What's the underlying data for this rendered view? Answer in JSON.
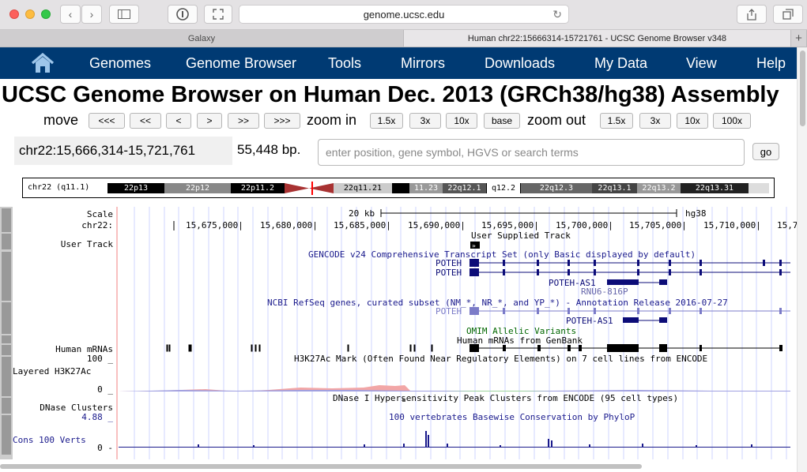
{
  "browser": {
    "url": "genome.ucsc.edu",
    "tabs": [
      "Galaxy",
      "Human chr22:15666314-15721761 - UCSC Genome Browser v348"
    ],
    "new_tab_label": "+"
  },
  "nav": {
    "items": [
      "Genomes",
      "Genome Browser",
      "Tools",
      "Mirrors",
      "Downloads",
      "My Data",
      "View",
      "Help"
    ]
  },
  "page": {
    "title": "UCSC Genome Browser on Human Dec. 2013 (GRCh38/hg38) Assembly"
  },
  "controls": {
    "move_label": "move",
    "move_buttons": [
      "<<<",
      "<<",
      "<",
      ">",
      ">>",
      ">>>"
    ],
    "zoom_in_label": "zoom in",
    "zoom_in_buttons": [
      "1.5x",
      "3x",
      "10x",
      "base"
    ],
    "zoom_out_label": "zoom out",
    "zoom_out_buttons": [
      "1.5x",
      "3x",
      "10x",
      "100x"
    ]
  },
  "position": {
    "value": "chr22:15,666,314-15,721,761",
    "size": "55,448 bp.",
    "search_placeholder": "enter position, gene symbol, HGVS or search terms",
    "go_label": "go"
  },
  "ideogram": {
    "label": "chr22 (q11.1)",
    "bands": [
      "22p13",
      "22p12",
      "22p11.2",
      "22q11.21",
      "11.23",
      "22q12.1",
      "q12.2",
      "22q12.3",
      "22q13.1",
      "22q13.2",
      "22q13.31"
    ]
  },
  "tracks": {
    "scale_label": "Scale",
    "chrom_label": "chr22:",
    "scale_text": "20 kb",
    "assembly": "hg38",
    "ruler": [
      "15,675,000|",
      "15,680,000|",
      "15,685,000|",
      "15,690,000|",
      "15,695,000|",
      "15,700,000|",
      "15,705,000|",
      "15,710,000|",
      "15,7"
    ],
    "user_track_label": "User Track",
    "user_track_title": "User Supplied Track",
    "gencode_title": "GENCODE v24 Comprehensive Transcript Set (only Basic displayed by default)",
    "gencode_genes": [
      "POTEH",
      "POTEH",
      "POTEH-AS1",
      "RNU6-816P"
    ],
    "refseq_title": "NCBI RefSeq genes, curated subset (NM_*, NR_*, and YP_*) - Annotation Release 2016-07-27",
    "refseq_genes": [
      "POTEH",
      "POTEH-AS1"
    ],
    "omim_title": "OMIM Allelic Variants",
    "mrna_title": "Human mRNAs from GenBank",
    "mrna_label": "Human mRNAs",
    "h3k_max": "100 _",
    "h3k_label": "Layered H3K27Ac",
    "h3k_min": "0 _",
    "h3k_title": "H3K27Ac Mark (Often Found Near Regulatory Elements) on 7 cell lines from ENCODE",
    "dnase_label": "DNase Clusters",
    "dnase_title": "DNase I Hypersensitivity Peak Clusters from ENCODE (95 cell types)",
    "cons_max": "4.88 _",
    "cons_title": "100 vertebrates Basewise Conservation by PhyloP",
    "cons_label": "Cons 100 Verts",
    "cons_min": "0 -"
  }
}
